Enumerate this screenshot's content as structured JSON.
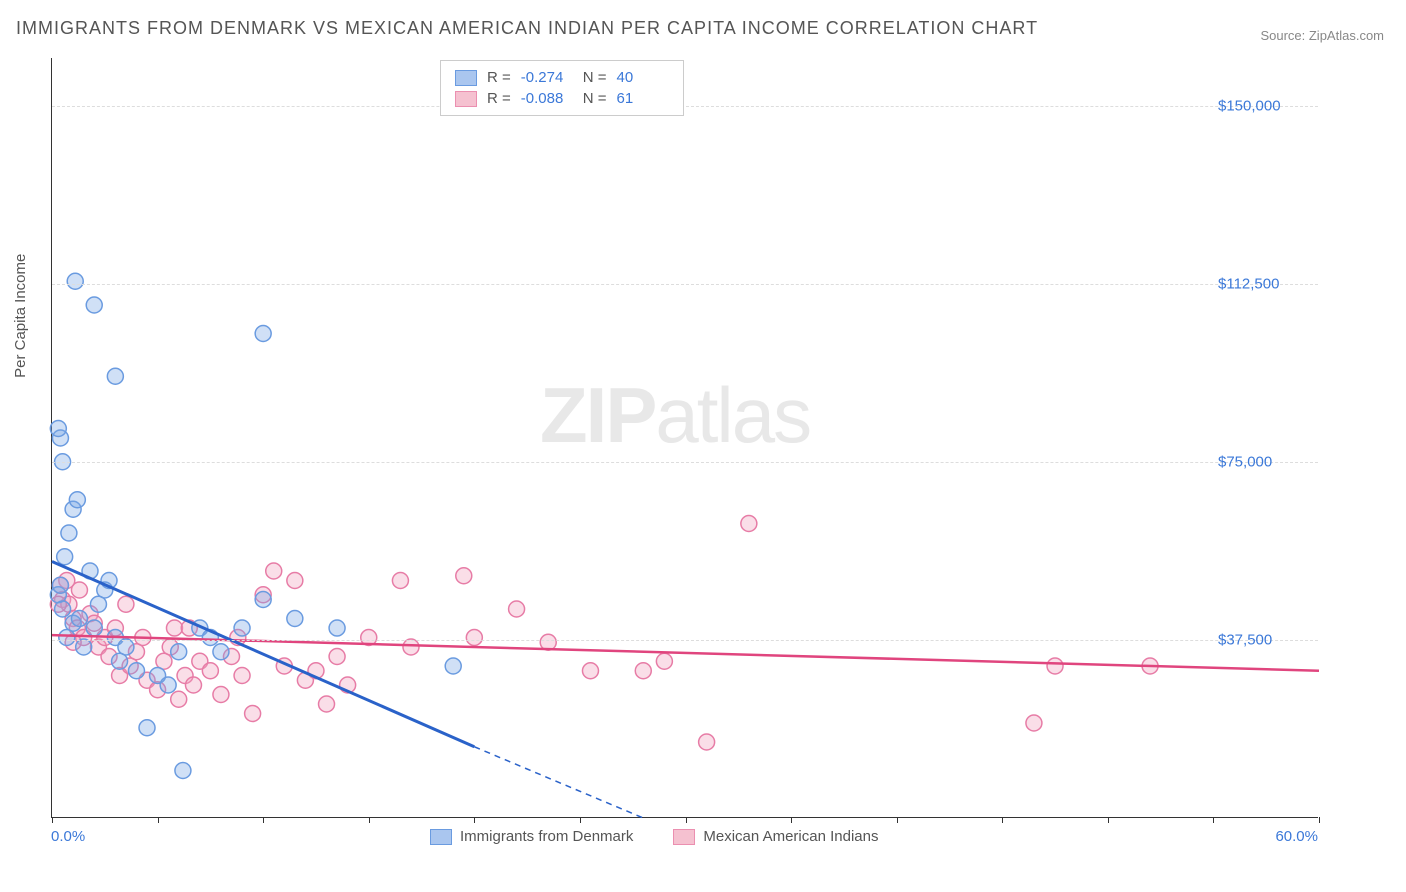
{
  "title": "IMMIGRANTS FROM DENMARK VS MEXICAN AMERICAN INDIAN PER CAPITA INCOME CORRELATION CHART",
  "source": "Source: ZipAtlas.com",
  "watermark_zip": "ZIP",
  "watermark_atlas": "atlas",
  "ylabel": "Per Capita Income",
  "xaxis": {
    "min": 0.0,
    "max": 60.0,
    "min_label": "0.0%",
    "max_label": "60.0%",
    "ticks": [
      0,
      5,
      10,
      15,
      20,
      25,
      30,
      35,
      40,
      45,
      50,
      55,
      60
    ]
  },
  "yaxis": {
    "min": 0,
    "max": 160000,
    "gridlines": [
      {
        "v": 37500,
        "label": "$37,500"
      },
      {
        "v": 75000,
        "label": "$75,000"
      },
      {
        "v": 112500,
        "label": "$112,500"
      },
      {
        "v": 150000,
        "label": "$150,000"
      }
    ]
  },
  "legend_top": [
    {
      "swatch_fill": "#aac6ef",
      "swatch_stroke": "#6a9be0",
      "r_label": "R =",
      "r": "-0.274",
      "n_label": "N =",
      "n": "40"
    },
    {
      "swatch_fill": "#f5c1d0",
      "swatch_stroke": "#eb8fb0",
      "r_label": "R =",
      "r": "-0.088",
      "n_label": "N =",
      "n": "61"
    }
  ],
  "legend_bottom": [
    {
      "swatch_fill": "#aac6ef",
      "swatch_stroke": "#6a9be0",
      "label": "Immigrants from Denmark"
    },
    {
      "swatch_fill": "#f5c1d0",
      "swatch_stroke": "#eb8fb0",
      "label": "Mexican American Indians"
    }
  ],
  "series": {
    "denmark": {
      "fill": "rgba(120,165,230,0.35)",
      "stroke": "#6a9be0",
      "marker_r": 8,
      "points": [
        [
          0.3,
          47000
        ],
        [
          0.4,
          49000
        ],
        [
          0.5,
          44000
        ],
        [
          0.6,
          55000
        ],
        [
          0.8,
          60000
        ],
        [
          1.0,
          65000
        ],
        [
          1.2,
          67000
        ],
        [
          0.5,
          75000
        ],
        [
          0.4,
          80000
        ],
        [
          0.3,
          82000
        ],
        [
          1.1,
          113000
        ],
        [
          2.0,
          108000
        ],
        [
          3.0,
          93000
        ],
        [
          10.0,
          102000
        ],
        [
          0.7,
          38000
        ],
        [
          1.0,
          41000
        ],
        [
          1.3,
          42000
        ],
        [
          1.5,
          36000
        ],
        [
          2.0,
          40000
        ],
        [
          2.2,
          45000
        ],
        [
          2.5,
          48000
        ],
        [
          2.7,
          50000
        ],
        [
          3.0,
          38000
        ],
        [
          3.2,
          33000
        ],
        [
          3.5,
          36000
        ],
        [
          4.0,
          31000
        ],
        [
          4.5,
          19000
        ],
        [
          5.0,
          30000
        ],
        [
          5.5,
          28000
        ],
        [
          6.0,
          35000
        ],
        [
          6.2,
          10000
        ],
        [
          7.0,
          40000
        ],
        [
          7.5,
          38000
        ],
        [
          8.0,
          35000
        ],
        [
          9.0,
          40000
        ],
        [
          10.0,
          46000
        ],
        [
          11.5,
          42000
        ],
        [
          13.5,
          40000
        ],
        [
          19.0,
          32000
        ],
        [
          1.8,
          52000
        ]
      ],
      "trend": {
        "solid_from_x": 0.0,
        "solid_from_y": 54000,
        "solid_to_x": 20.0,
        "solid_to_y": 15000,
        "dash_to_x": 28.0,
        "dash_to_y": 0,
        "color": "#2a62c9",
        "width": 3
      }
    },
    "mexican": {
      "fill": "rgba(240,160,190,0.35)",
      "stroke": "#e77ca6",
      "marker_r": 8,
      "points": [
        [
          0.5,
          46000
        ],
        [
          0.8,
          45000
        ],
        [
          1.0,
          42000
        ],
        [
          1.2,
          40000
        ],
        [
          1.5,
          38000
        ],
        [
          1.8,
          43000
        ],
        [
          2.0,
          41000
        ],
        [
          2.2,
          36000
        ],
        [
          2.5,
          38000
        ],
        [
          2.7,
          34000
        ],
        [
          3.0,
          40000
        ],
        [
          3.2,
          30000
        ],
        [
          3.5,
          45000
        ],
        [
          3.7,
          32000
        ],
        [
          4.0,
          35000
        ],
        [
          4.3,
          38000
        ],
        [
          4.5,
          29000
        ],
        [
          5.0,
          27000
        ],
        [
          5.3,
          33000
        ],
        [
          5.6,
          36000
        ],
        [
          6.0,
          25000
        ],
        [
          6.3,
          30000
        ],
        [
          6.7,
          28000
        ],
        [
          7.0,
          33000
        ],
        [
          7.5,
          31000
        ],
        [
          8.0,
          26000
        ],
        [
          8.5,
          34000
        ],
        [
          9.0,
          30000
        ],
        [
          9.5,
          22000
        ],
        [
          10.0,
          47000
        ],
        [
          10.5,
          52000
        ],
        [
          11.0,
          32000
        ],
        [
          11.5,
          50000
        ],
        [
          12.0,
          29000
        ],
        [
          12.5,
          31000
        ],
        [
          13.0,
          24000
        ],
        [
          13.5,
          34000
        ],
        [
          14.0,
          28000
        ],
        [
          15.0,
          38000
        ],
        [
          16.5,
          50000
        ],
        [
          17.0,
          36000
        ],
        [
          19.5,
          51000
        ],
        [
          20.0,
          38000
        ],
        [
          22.0,
          44000
        ],
        [
          23.5,
          37000
        ],
        [
          25.5,
          31000
        ],
        [
          28.0,
          31000
        ],
        [
          29.0,
          33000
        ],
        [
          31.0,
          16000
        ],
        [
          33.0,
          62000
        ],
        [
          46.5,
          20000
        ],
        [
          47.5,
          32000
        ],
        [
          52.0,
          32000
        ],
        [
          1.0,
          37000
        ],
        [
          1.3,
          48000
        ],
        [
          0.7,
          50000
        ],
        [
          0.4,
          49000
        ],
        [
          0.3,
          45000
        ],
        [
          5.8,
          40000
        ],
        [
          6.5,
          40000
        ],
        [
          8.8,
          38000
        ]
      ],
      "trend": {
        "solid_from_x": 0.0,
        "solid_from_y": 38500,
        "solid_to_x": 60.0,
        "solid_to_y": 31000,
        "color": "#e0457e",
        "width": 2.5
      }
    }
  },
  "colors": {
    "grid": "#dddddd",
    "axis": "#333333",
    "tick_text": "#3b78d8",
    "title_text": "#555555"
  }
}
